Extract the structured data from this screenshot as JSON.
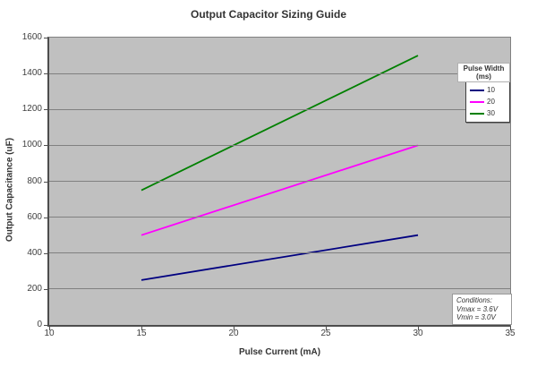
{
  "chart_data": {
    "type": "line",
    "title": "Output Capacitor Sizing Guide",
    "xlabel": "Pulse Current (mA)",
    "ylabel": "Output Capacitance (uF)",
    "xlim": [
      10,
      35
    ],
    "ylim": [
      0,
      1600
    ],
    "x_ticks": [
      10,
      15,
      20,
      25,
      30,
      35
    ],
    "y_ticks": [
      0,
      200,
      400,
      600,
      800,
      1000,
      1200,
      1400,
      1600
    ],
    "grid": "horizontal-only",
    "plot_background": "#C0C0C0",
    "gridline_color": "#808080",
    "legend_position": "inside-top-right",
    "series": [
      {
        "name": "10",
        "color": "#000080",
        "points": [
          [
            15,
            250
          ],
          [
            30,
            500
          ]
        ]
      },
      {
        "name": "20",
        "color": "#FF00FF",
        "points": [
          [
            15,
            500
          ],
          [
            30,
            1000
          ]
        ]
      },
      {
        "name": "30",
        "color": "#008000",
        "points": [
          [
            15,
            750
          ],
          [
            30,
            1500
          ]
        ]
      }
    ]
  },
  "legend": {
    "title_line1": "Pulse Width",
    "title_line2": "(ms)"
  },
  "conditions": {
    "lines": [
      "Conditions:",
      "Vmax = 3.6V",
      "Vmin = 3.0V"
    ]
  }
}
